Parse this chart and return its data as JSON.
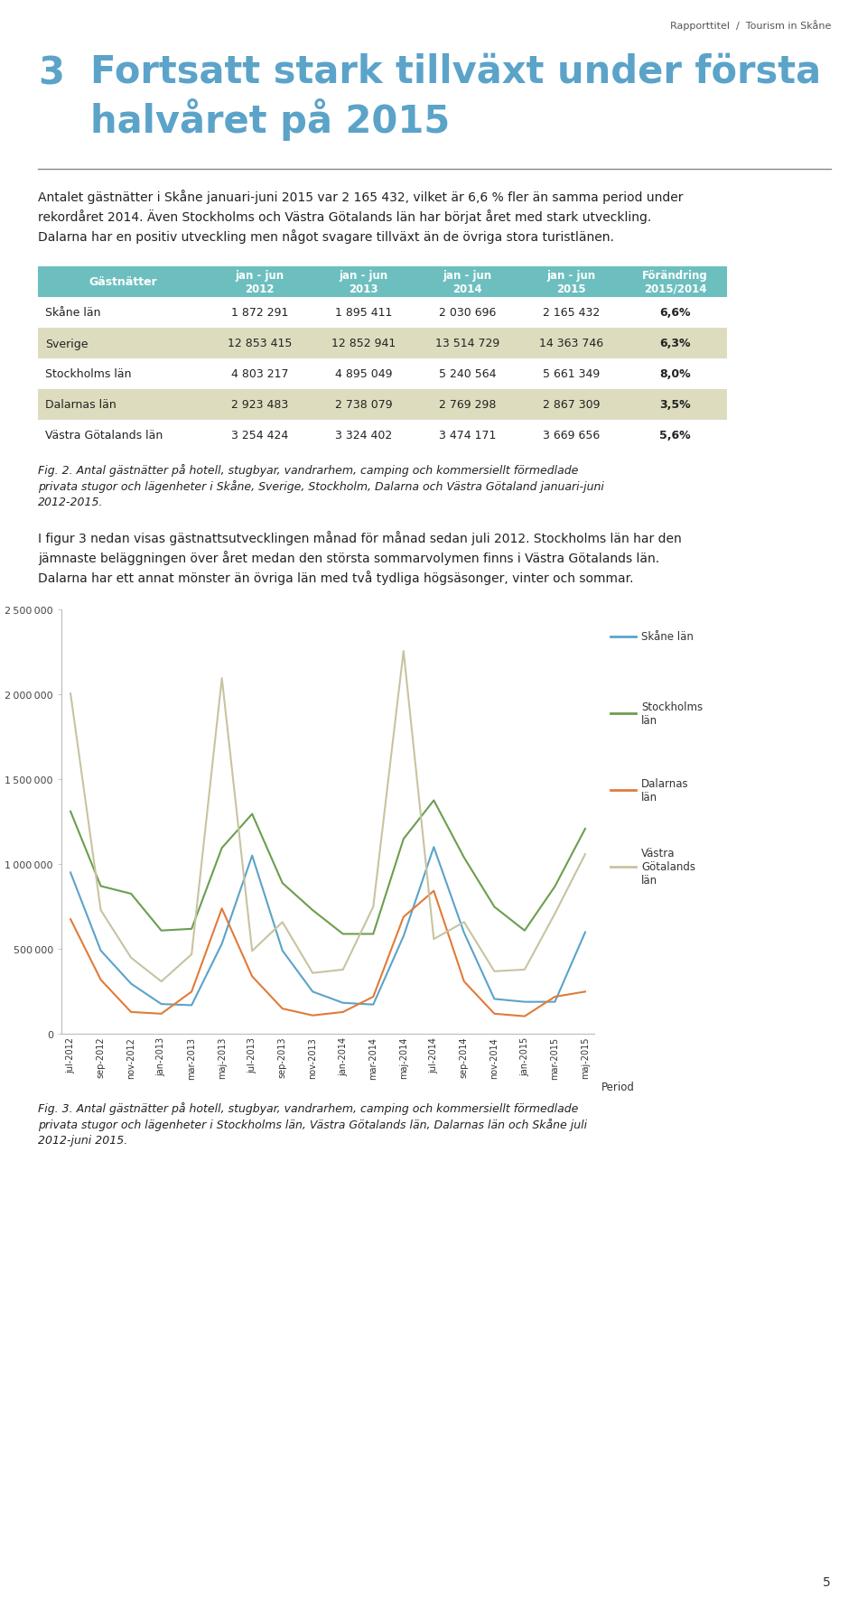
{
  "header_text": "Rapporttitel  /  Tourism in Skåne",
  "chapter_num": "3",
  "paragraph1_line1": "Antalet gästnätter i Skåne januari-juni 2015 var 2 165 432, vilket är 6,6 % fler än samma period under",
  "paragraph1_line2": "rekordåret 2014. Även Stockholms och Västra Götalands län har börjat året med stark utveckling.",
  "paragraph1_line3": "Dalarna har en positiv utveckling men något svagare tillväxt än de övriga stora turistlänen.",
  "table_header_col0": "Gästnätter",
  "table_headers": [
    "jan - jun\n2012",
    "jan - jun\n2013",
    "jan - jun\n2014",
    "jan - jun\n2015",
    "Förändring\n2015/2014"
  ],
  "table_rows": [
    [
      "Skåne län",
      "1 872 291",
      "1 895 411",
      "2 030 696",
      "2 165 432",
      "6,6%"
    ],
    [
      "Sverige",
      "12 853 415",
      "12 852 941",
      "13 514 729",
      "14 363 746",
      "6,3%"
    ],
    [
      "Stockholms län",
      "4 803 217",
      "4 895 049",
      "5 240 564",
      "5 661 349",
      "8,0%"
    ],
    [
      "Dalarnas län",
      "2 923 483",
      "2 738 079",
      "2 769 298",
      "2 867 309",
      "3,5%"
    ],
    [
      "Västra Götalands län",
      "3 254 424",
      "3 324 402",
      "3 474 171",
      "3 669 656",
      "5,6%"
    ]
  ],
  "table_header_bg": "#6dbfbf",
  "table_alt_row_bg": "#dddcbe",
  "table_white_row_bg": "#ffffff",
  "fig2_cap_line1": "Fig. 2. Antal gästnätter på hotell, stugbyar, vandrarhem, camping och kommersiellt förmedlade",
  "fig2_cap_line2": "privata stugor och lägenheter i Skåne, Sverige, Stockholm, Dalarna och Västra Götaland januari-juni",
  "fig2_cap_line3": "2012-2015.",
  "para2_line1": "I figur 3 nedan visas gästnattsutvecklingen månad för månad sedan juli 2012. Stockholms län har den",
  "para2_line2": "jämnaste beläggningen över året medan den största sommarvolymen finns i Västra Götalands län.",
  "para2_line3": "Dalarna har ett annat mönster än övriga län med två tydliga högsäsonger, vinter och sommar.",
  "x_labels": [
    "jul-2012",
    "sep-2012",
    "nov-2012",
    "jan-2013",
    "mar-2013",
    "maj-2013",
    "jul-2013",
    "sep-2013",
    "nov-2013",
    "jan-2014",
    "mar-2014",
    "maj-2014",
    "jul-2014",
    "sep-2014",
    "nov-2014",
    "jan-2015",
    "mar-2015",
    "maj-2015"
  ],
  "skane_data": [
    950000,
    490000,
    295000,
    175000,
    168000,
    530000,
    1050000,
    490000,
    248000,
    182000,
    172000,
    575000,
    1100000,
    595000,
    205000,
    188000,
    188000,
    598000
  ],
  "stockholm_data": [
    1310000,
    870000,
    825000,
    608000,
    618000,
    1095000,
    1295000,
    888000,
    728000,
    588000,
    588000,
    1148000,
    1375000,
    1038000,
    748000,
    608000,
    868000,
    1208000
  ],
  "dalarna_data": [
    675000,
    318000,
    128000,
    118000,
    248000,
    738000,
    338000,
    148000,
    108000,
    128000,
    218000,
    688000,
    842000,
    308000,
    118000,
    103000,
    218000,
    248000
  ],
  "vastragotaland_data": [
    2005000,
    728000,
    448000,
    308000,
    468000,
    2095000,
    488000,
    658000,
    358000,
    378000,
    748000,
    2255000,
    558000,
    658000,
    368000,
    378000,
    708000,
    1058000
  ],
  "line_colors": {
    "skane": "#5ba3c9",
    "stockholm": "#6b9e4e",
    "dalarna": "#e07b39",
    "vastragotaland": "#c8c3a0"
  },
  "legend_labels": [
    "Skåne län",
    "Stockholms\nlän",
    "Dalarnas\nlän",
    "Västra\nGötalands\nlän"
  ],
  "fig3_cap_line1": "Fig. 3. Antal gästnätter på hotell, stugbyar, vandrarhem, camping och kommersiellt förmedlade",
  "fig3_cap_line2": "privata stugor och lägenheter i Stockholms län, Västra Götalands län, Dalarnas län och Skåne juli",
  "fig3_cap_line3": "2012-juni 2015.",
  "page_number": "5",
  "ylim": [
    0,
    2500000
  ],
  "yticks": [
    0,
    500000,
    1000000,
    1500000,
    2000000,
    2500000
  ]
}
